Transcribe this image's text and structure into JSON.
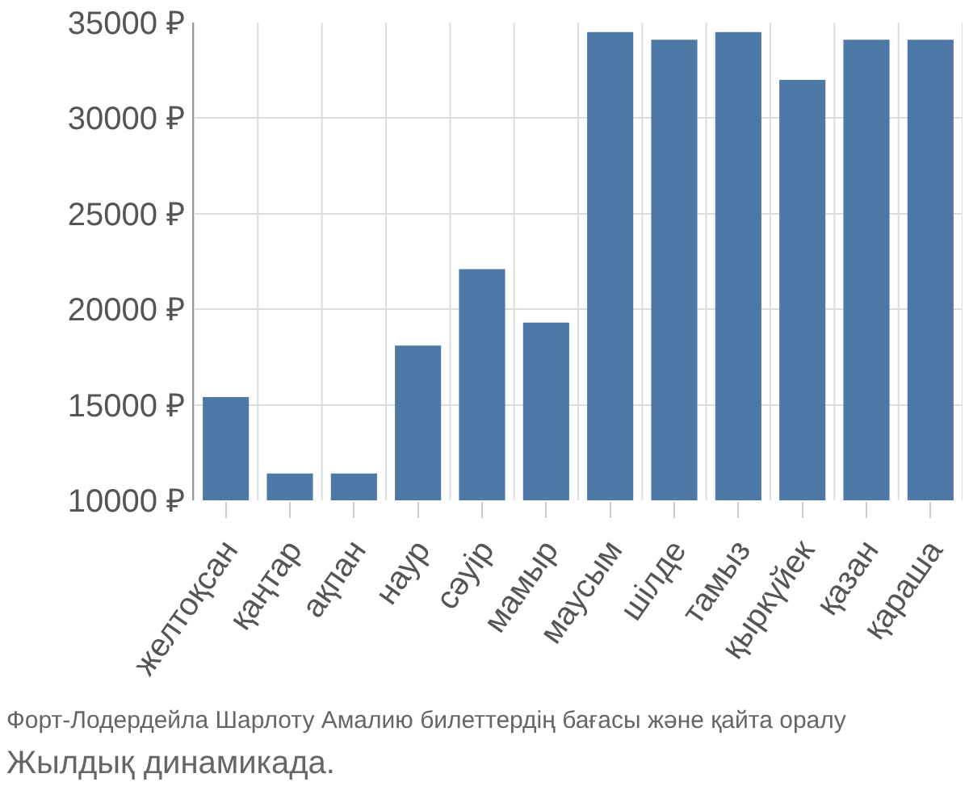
{
  "chart_data": {
    "type": "bar",
    "categories": [
      "желтоқсан",
      "қаңтар",
      "ақпан",
      "наур",
      "сәуір",
      "мамыр",
      "маусым",
      "шілде",
      "тамыз",
      "қыркүйек",
      "қазан",
      "қараша"
    ],
    "values": [
      15400,
      11400,
      11400,
      18100,
      22100,
      19300,
      34500,
      34100,
      34500,
      32000,
      34100,
      34100
    ],
    "color": "#4e79a7",
    "ylim": [
      10000,
      35000
    ],
    "yticks": [
      {
        "value": 10000,
        "label": "10000 ₽"
      },
      {
        "value": 15000,
        "label": "15000 ₽"
      },
      {
        "value": 20000,
        "label": "20000 ₽"
      },
      {
        "value": 25000,
        "label": "25000 ₽"
      },
      {
        "value": 30000,
        "label": "30000 ₽"
      },
      {
        "value": 35000,
        "label": "35000 ₽"
      }
    ],
    "grid": true,
    "annotations": [
      "Форт-Лодердейла Шарлоту Амалию билеттердің бағасы және қайта оралу",
      "Жылдық динамикада."
    ]
  }
}
